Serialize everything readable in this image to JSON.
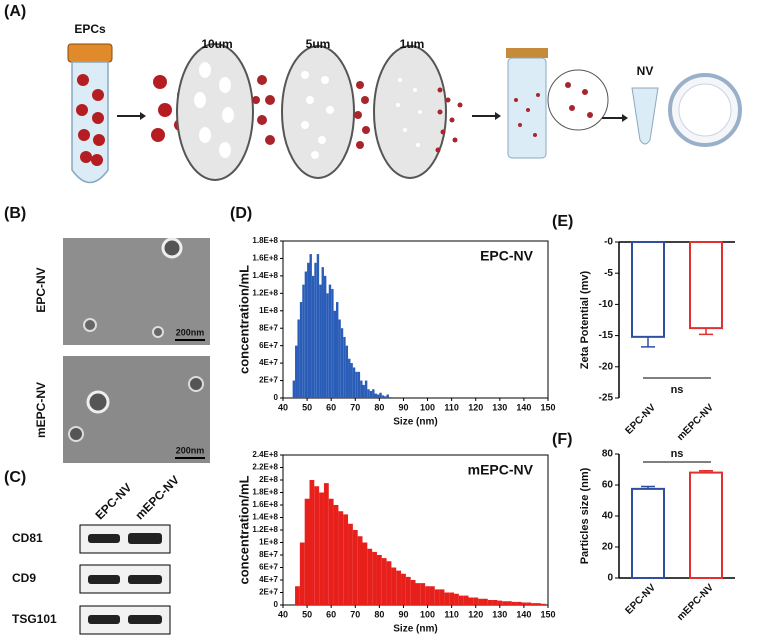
{
  "panel_labels": [
    "(A)",
    "(B)",
    "(C)",
    "(D)",
    "(E)",
    "(F)"
  ],
  "panel_a": {
    "cell_label": "EPCs",
    "filters": [
      "10um",
      "5um",
      "1um"
    ],
    "product": "NV"
  },
  "panel_b": {
    "rows": [
      "EPC-NV",
      "mEPC-NV"
    ],
    "scale_bar": "200nm"
  },
  "panel_c": {
    "lanes": [
      "EPC-NV",
      "mEPC-NV"
    ],
    "proteins": [
      "CD81",
      "CD9",
      "TSG101"
    ]
  },
  "chart_data": [
    {
      "type": "histogram",
      "annotation": "EPC-NV",
      "x_label": "Size (nm)",
      "y_label": "concentration/mL",
      "color": "#2a5db8",
      "bins": [
        44,
        45,
        46,
        47,
        48,
        49,
        50,
        51,
        52,
        53,
        54,
        55,
        56,
        57,
        58,
        59,
        60,
        61,
        62,
        63,
        64,
        65,
        66,
        67,
        68,
        69,
        70,
        71,
        72,
        73,
        74,
        75,
        76,
        77,
        78,
        79,
        80,
        81,
        82,
        83,
        84,
        85,
        86
      ],
      "values": [
        20000000.0,
        60000000.0,
        90000000.0,
        110000000.0,
        130000000.0,
        145000000.0,
        155000000.0,
        165000000.0,
        140000000.0,
        155000000.0,
        165000000.0,
        130000000.0,
        150000000.0,
        140000000.0,
        120000000.0,
        130000000.0,
        125000000.0,
        100000000.0,
        110000000.0,
        90000000.0,
        80000000.0,
        70000000.0,
        60000000.0,
        45000000.0,
        40000000.0,
        35000000.0,
        30000000.0,
        30000000.0,
        20000000.0,
        15000000.0,
        20000000.0,
        10000000.0,
        8000000.0,
        10000000.0,
        5000000.0,
        4000000.0,
        6000000.0,
        3000000.0,
        2000000.0,
        4000000.0,
        1000000.0,
        0
      ],
      "xlim": [
        40,
        150
      ],
      "xticks": [
        40,
        50,
        60,
        70,
        80,
        90,
        100,
        110,
        120,
        130,
        140,
        150
      ],
      "ylim": [
        0,
        180000000.0
      ],
      "yticks": [
        0,
        {
          "value": 20000000.0,
          "label": "2E+7"
        },
        {
          "value": 40000000.0,
          "label": "4E+7"
        },
        {
          "value": 60000000.0,
          "label": "6E+7"
        },
        {
          "value": 80000000.0,
          "label": "8E+7"
        },
        {
          "value": 100000000.0,
          "label": "1E+8"
        },
        {
          "value": 120000000.0,
          "label": "1.2E+8"
        },
        {
          "value": 140000000.0,
          "label": "1.4E+8"
        },
        {
          "value": 160000000.0,
          "label": "1.6E+8"
        },
        {
          "value": 180000000.0,
          "label": "1.8E+8"
        }
      ]
    },
    {
      "type": "histogram",
      "annotation": "mEPC-NV",
      "x_label": "Size (nm)",
      "y_label": "concentration/mL",
      "color": "#e8201c",
      "bins": [
        45,
        47,
        49,
        51,
        53,
        55,
        57,
        59,
        61,
        63,
        65,
        67,
        69,
        71,
        73,
        75,
        77,
        79,
        81,
        83,
        85,
        87,
        89,
        91,
        93,
        95,
        97,
        99,
        101,
        103,
        105,
        107,
        109,
        111,
        113,
        115,
        117,
        119,
        121,
        123,
        125,
        127,
        129,
        131,
        133,
        135,
        137,
        139,
        141,
        143,
        145,
        147,
        149
      ],
      "values": [
        30000000.0,
        100000000.0,
        170000000.0,
        200000000.0,
        190000000.0,
        180000000.0,
        195000000.0,
        170000000.0,
        160000000.0,
        150000000.0,
        145000000.0,
        130000000.0,
        120000000.0,
        110000000.0,
        100000000.0,
        90000000.0,
        85000000.0,
        80000000.0,
        75000000.0,
        70000000.0,
        60000000.0,
        55000000.0,
        50000000.0,
        45000000.0,
        40000000.0,
        35000000.0,
        35000000.0,
        30000000.0,
        30000000.0,
        25000000.0,
        25000000.0,
        20000000.0,
        20000000.0,
        18000000.0,
        15000000.0,
        15000000.0,
        12000000.0,
        12000000.0,
        10000000.0,
        10000000.0,
        8000000.0,
        8000000.0,
        7000000.0,
        6000000.0,
        6000000.0,
        5000000.0,
        5000000.0,
        4000000.0,
        4000000.0,
        3000000.0,
        3000000.0,
        2000000.0
      ],
      "xlim": [
        40,
        150
      ],
      "xticks": [
        40,
        50,
        60,
        70,
        80,
        90,
        100,
        110,
        120,
        130,
        140,
        150
      ],
      "ylim": [
        0,
        240000000.0
      ],
      "yticks": [
        0,
        {
          "value": 20000000.0,
          "label": "2E+7"
        },
        {
          "value": 40000000.0,
          "label": "4E+7"
        },
        {
          "value": 60000000.0,
          "label": "6E+7"
        },
        {
          "value": 80000000.0,
          "label": "8E+7"
        },
        {
          "value": 100000000.0,
          "label": "1E+8"
        },
        {
          "value": 120000000.0,
          "label": "1.2E+8"
        },
        {
          "value": 140000000.0,
          "label": "1.4E+8"
        },
        {
          "value": 160000000.0,
          "label": "1.6E+8"
        },
        {
          "value": 180000000.0,
          "label": "1.8E+8"
        },
        {
          "value": 200000000.0,
          "label": "2E+8"
        },
        {
          "value": 220000000.0,
          "label": "2.2E+8"
        },
        {
          "value": 240000000.0,
          "label": "2.4E+8"
        }
      ]
    },
    {
      "type": "bar",
      "y_label": "Zeta Potential (mv)",
      "annotation": "ns",
      "categories": [
        "EPC-NV",
        "mEPC-NV"
      ],
      "values": [
        -15.2,
        -13.8
      ],
      "errors": [
        1.6,
        1.0
      ],
      "colors": [
        "#2e4fa0",
        "#e03030"
      ],
      "ylim": [
        -25,
        0
      ],
      "yticks": [
        -25,
        -20,
        -15,
        -10,
        -5,
        {
          "value": 0,
          "label": "-0"
        }
      ]
    },
    {
      "type": "bar",
      "y_label": "Particles size (nm)",
      "annotation": "ns",
      "categories": [
        "EPC-NV",
        "mEPC-NV"
      ],
      "values": [
        57.5,
        68
      ],
      "errors": [
        1.5,
        1.2
      ],
      "colors": [
        "#2e4fa0",
        "#e03030"
      ],
      "ylim": [
        0,
        80
      ],
      "yticks": [
        0,
        20,
        40,
        60,
        80
      ]
    }
  ]
}
